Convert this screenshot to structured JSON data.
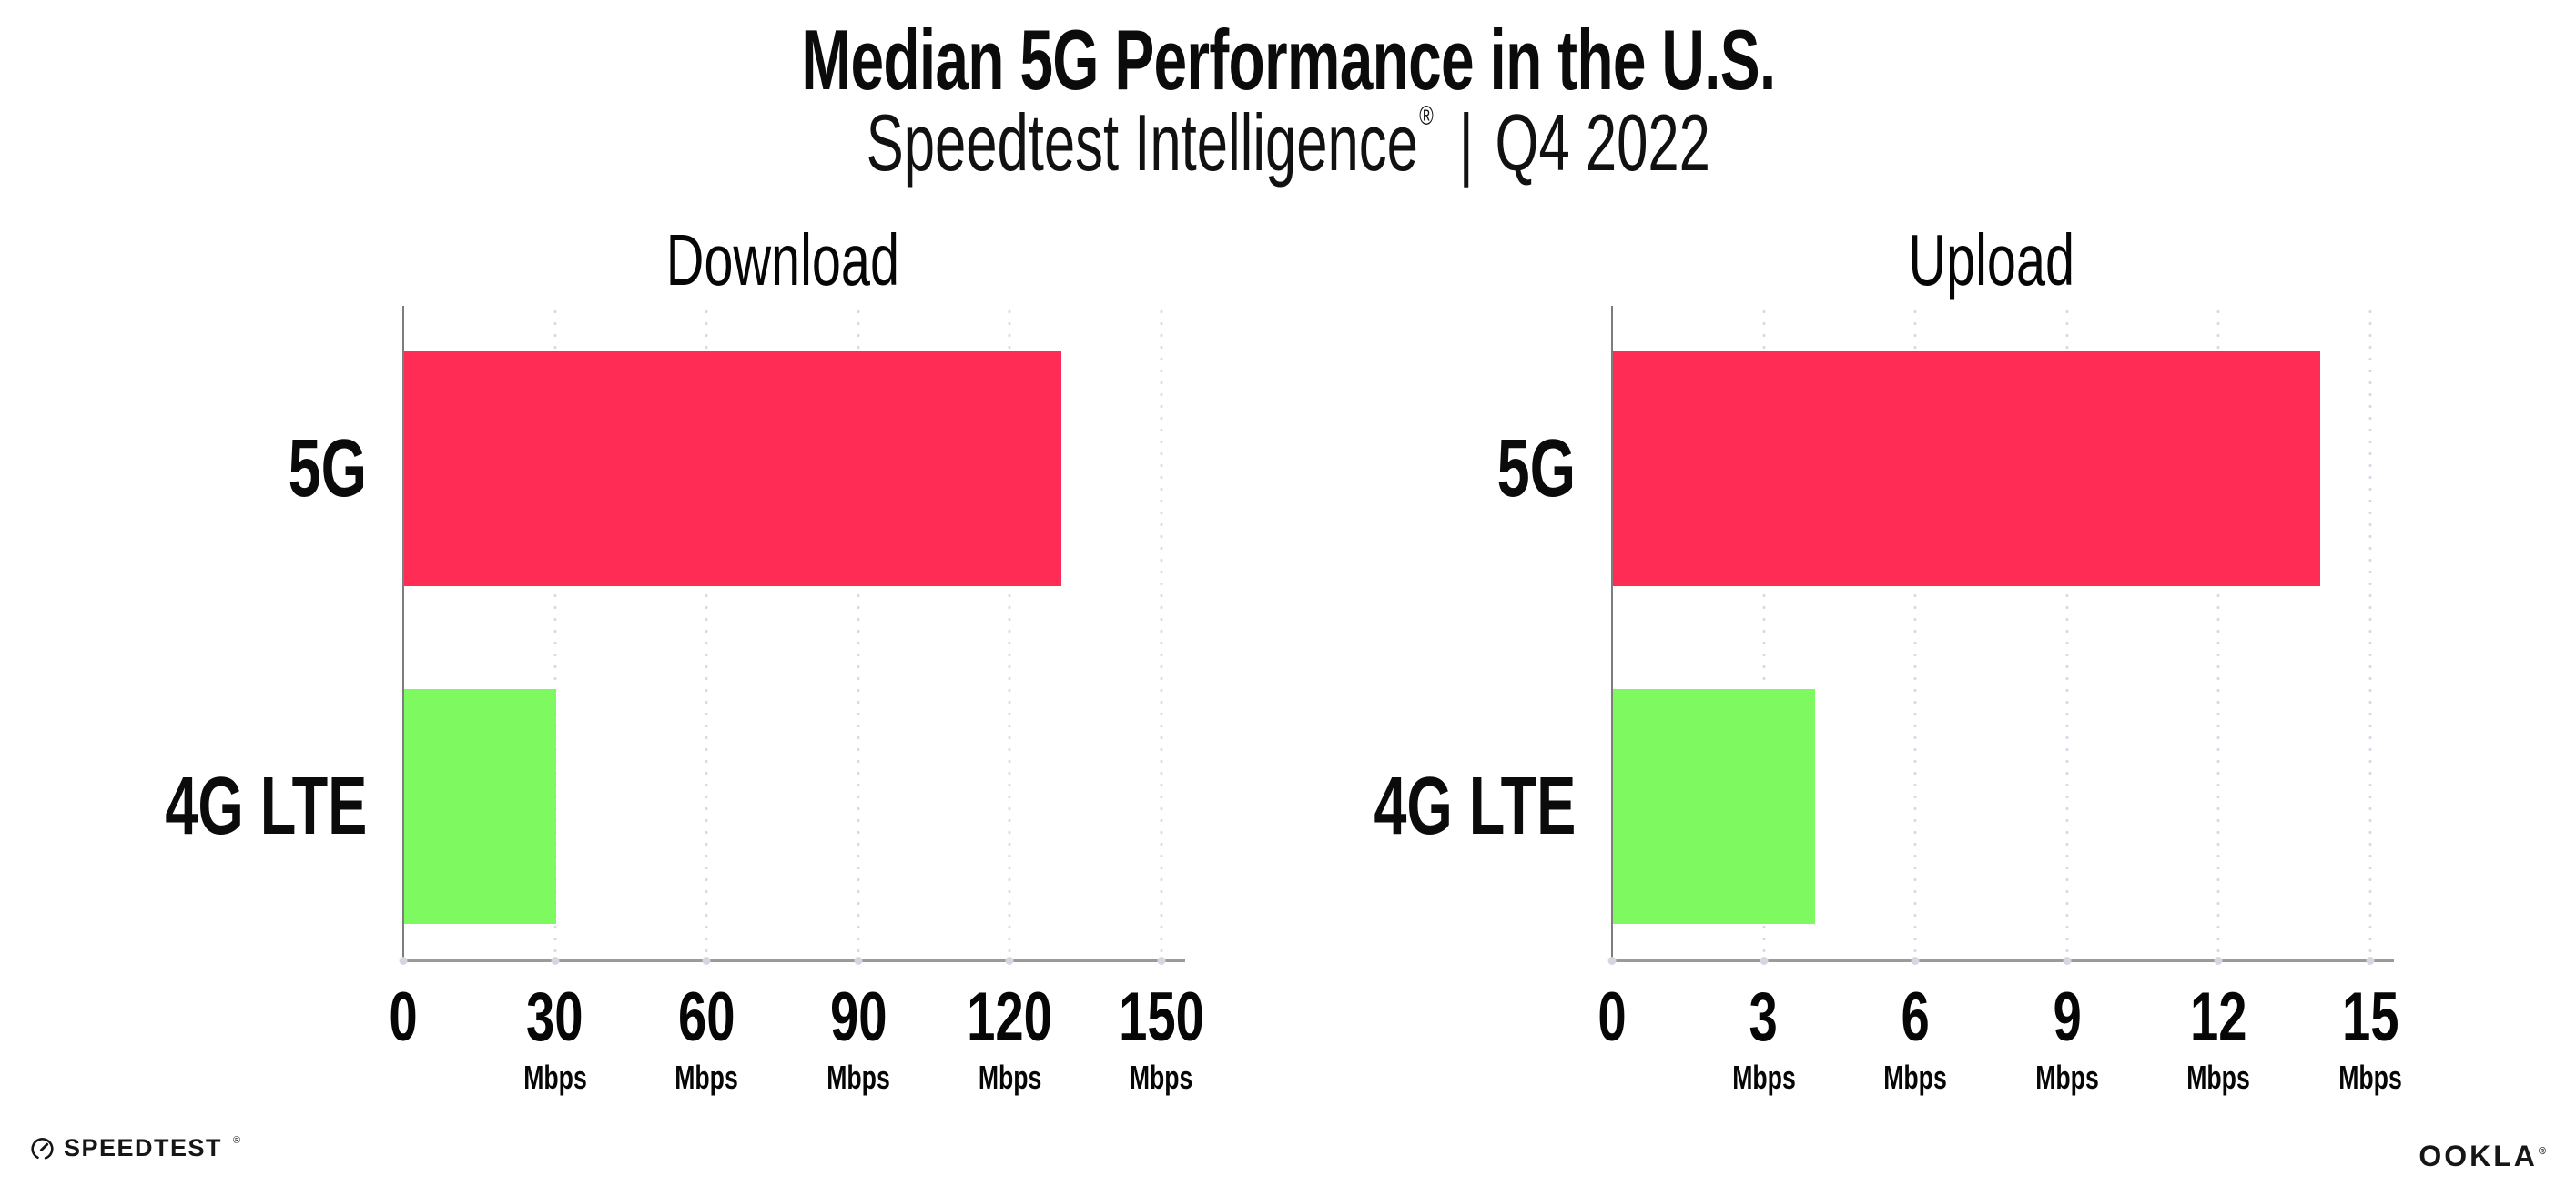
{
  "header": {
    "title": "Median 5G Performance in the U.S.",
    "subtitle": {
      "brand": "Speedtest Intelligence",
      "registered": "®",
      "separator": "|",
      "period": "Q4 2022"
    }
  },
  "chart_data": [
    {
      "type": "bar",
      "orientation": "horizontal",
      "title": "Download",
      "categories": [
        "5G",
        "4G LTE"
      ],
      "values": [
        130,
        30
      ],
      "unit": "Mbps",
      "xlim": [
        0,
        150
      ],
      "xticks": [
        0,
        30,
        60,
        90,
        120,
        150
      ],
      "xtick_units": [
        "",
        "Mbps",
        "Mbps",
        "Mbps",
        "Mbps",
        "Mbps"
      ],
      "bar_colors": [
        "#ff2d55",
        "#7efa60"
      ],
      "grid": "vertical-dotted",
      "legend": "none"
    },
    {
      "type": "bar",
      "orientation": "horizontal",
      "title": "Upload",
      "categories": [
        "5G",
        "4G LTE"
      ],
      "values": [
        14,
        4
      ],
      "unit": "Mbps",
      "xlim": [
        0,
        15
      ],
      "xticks": [
        0,
        3,
        6,
        9,
        12,
        15
      ],
      "xtick_units": [
        "",
        "Mbps",
        "Mbps",
        "Mbps",
        "Mbps",
        "Mbps"
      ],
      "bar_colors": [
        "#ff2d55",
        "#7efa60"
      ],
      "grid": "vertical-dotted",
      "legend": "none"
    }
  ],
  "colors": {
    "background": "#ffffff",
    "bar_5g": "#ff2d55",
    "bar_4g_lte": "#7efa60",
    "axis_line": "#9a9a9a",
    "gridline_dots": "#d9dae6",
    "text": "#0b0b0b"
  },
  "footer": {
    "speedtest_wordmark": "SPEEDTEST",
    "speedtest_mark": "®",
    "ookla_wordmark": "OOKLA",
    "ookla_mark": "®"
  }
}
